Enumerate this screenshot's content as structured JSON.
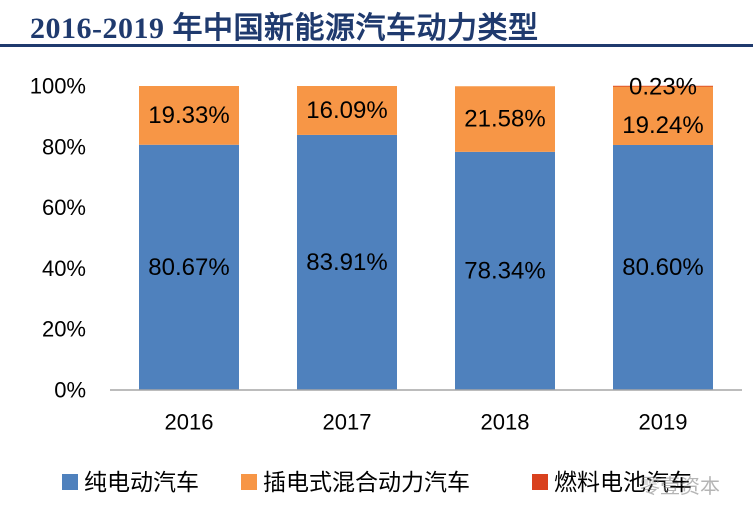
{
  "header": {
    "title": "2016-2019 年中国新能源汽车动力类型"
  },
  "watermark": "零壹资本",
  "chart_data": {
    "type": "bar",
    "stacked": true,
    "percent": true,
    "categories": [
      "2016",
      "2017",
      "2018",
      "2019"
    ],
    "series": [
      {
        "name": "纯电动汽车",
        "color": "#4f81bd",
        "values": [
          80.67,
          83.91,
          78.34,
          80.6
        ],
        "labels": [
          "80.67%",
          "83.91%",
          "78.34%",
          "80.60%"
        ]
      },
      {
        "name": "插电式混合动力汽车",
        "color": "#f79646",
        "values": [
          19.33,
          16.09,
          21.58,
          19.24
        ],
        "labels": [
          "19.33%",
          "16.09%",
          "21.58%",
          "19.24%"
        ]
      },
      {
        "name": "燃料电池汽车",
        "color": "#d9411e",
        "values": [
          0,
          0,
          0,
          0.23
        ],
        "labels": [
          "",
          "",
          "",
          "0.23%"
        ]
      }
    ],
    "ylim": [
      0,
      100
    ],
    "yticks": [
      "0%",
      "20%",
      "40%",
      "60%",
      "80%",
      "100%"
    ],
    "legend_position": "bottom",
    "grid": false
  }
}
